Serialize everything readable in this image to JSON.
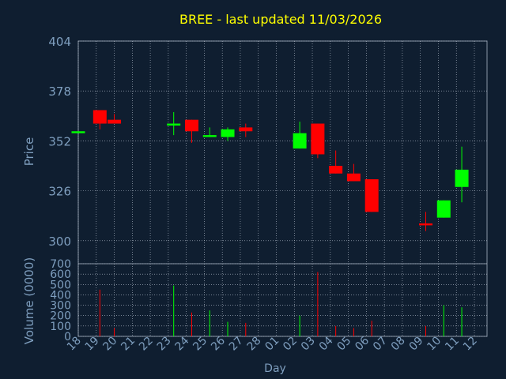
{
  "chart_data": {
    "type": "candlestick",
    "title": "BREE - last updated 11/03/2026",
    "xlabel": "Day",
    "price_panel": {
      "ylabel": "Price",
      "ylim": [
        288,
        404
      ],
      "yticks": [
        300,
        326,
        352,
        378,
        404
      ]
    },
    "volume_panel": {
      "ylabel": "Volume (0000)",
      "ylim": [
        0,
        700
      ],
      "yticks": [
        0,
        100,
        200,
        300,
        400,
        500,
        600,
        700
      ]
    },
    "categories": [
      "18",
      "19",
      "20",
      "21",
      "22",
      "23",
      "24",
      "25",
      "26",
      "27",
      "28",
      "01",
      "02",
      "03",
      "04",
      "05",
      "06",
      "07",
      "08",
      "09",
      "10",
      "11",
      "12"
    ],
    "category_start": 18,
    "candles": [
      {
        "x": 18.0,
        "open": 356,
        "close": 357,
        "high": 357,
        "low": 356,
        "volume": 0
      },
      {
        "x": 19.2,
        "open": 368,
        "close": 361,
        "high": 368,
        "low": 358,
        "volume": 450
      },
      {
        "x": 20.0,
        "open": 363,
        "close": 361,
        "high": 366,
        "low": 361,
        "volume": 80
      },
      {
        "x": 23.3,
        "open": 360,
        "close": 361,
        "high": 367,
        "low": 355,
        "volume": 490
      },
      {
        "x": 24.3,
        "open": 363,
        "close": 357,
        "high": 363,
        "low": 351,
        "volume": 230
      },
      {
        "x": 25.3,
        "open": 354,
        "close": 355,
        "high": 359,
        "low": 354,
        "volume": 250
      },
      {
        "x": 26.3,
        "open": 354,
        "close": 358,
        "high": 359,
        "low": 352,
        "volume": 140
      },
      {
        "x": 27.3,
        "open": 359,
        "close": 357,
        "high": 361,
        "low": 354,
        "volume": 130
      },
      {
        "x": 30.3,
        "open": 348,
        "close": 356,
        "high": 362,
        "low": 348,
        "volume": 200
      },
      {
        "x": 31.3,
        "open": 361,
        "close": 345,
        "high": 361,
        "low": 343,
        "volume": 620
      },
      {
        "x": 32.3,
        "open": 339,
        "close": 335,
        "high": 347,
        "low": 335,
        "volume": 100
      },
      {
        "x": 33.3,
        "open": 335,
        "close": 331,
        "high": 340,
        "low": 331,
        "volume": 80
      },
      {
        "x": 34.3,
        "open": 332,
        "close": 315,
        "high": 332,
        "low": 315,
        "volume": 150
      },
      {
        "x": 37.3,
        "open": 309,
        "close": 308,
        "high": 315,
        "low": 305,
        "volume": 100
      },
      {
        "x": 38.3,
        "open": 312,
        "close": 321,
        "high": 321,
        "low": 312,
        "volume": 300
      },
      {
        "x": 39.3,
        "open": 328,
        "close": 337,
        "high": 349,
        "low": 320,
        "volume": 280
      }
    ]
  },
  "colors": {
    "background": "#0f1e30",
    "plot_border": "#8a96a6",
    "grid": "#b8c2cf",
    "title": "#ffff00",
    "axis_text": "#7f9fbf",
    "up": "#00ff00",
    "down": "#ff0000"
  }
}
